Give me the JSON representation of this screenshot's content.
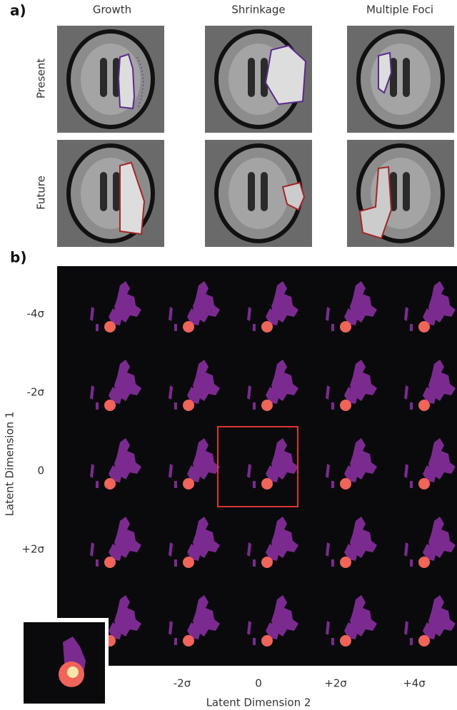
{
  "panel_a": {
    "label": "a)",
    "columns": [
      "Growth",
      "Shrinkage",
      "Multiple Foci"
    ],
    "rows": [
      "Present",
      "Future"
    ]
  },
  "panel_b": {
    "label": "b)",
    "y_axis": {
      "title": "Latent Dimension 1",
      "ticks": [
        "-4σ",
        "-2σ",
        "0",
        "+2σ"
      ]
    },
    "x_axis": {
      "title": "Latent Dimension 2",
      "ticks": [
        "-2σ",
        "0",
        "+2σ",
        "+4σ"
      ]
    }
  }
}
